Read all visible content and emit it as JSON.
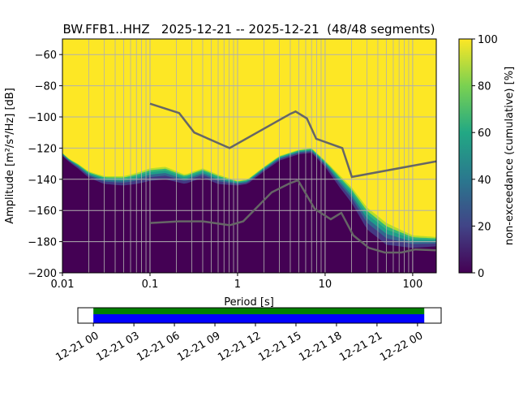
{
  "chart_data": {
    "type": "heatmap",
    "title": "BW.FFB1..HHZ   2025-12-21 -- 2025-12-21  (48/48 segments)",
    "xlabel": "Period [s]",
    "ylabel": "Amplitude [m²/s⁴/Hz] [dB]",
    "xscale": "log",
    "xlim": [
      0.01,
      186
    ],
    "ylim": [
      -200,
      -50
    ],
    "xticks": [
      {
        "v": 0.01,
        "label": "0.01"
      },
      {
        "v": 0.1,
        "label": "0.1"
      },
      {
        "v": 1,
        "label": "1"
      },
      {
        "v": 10,
        "label": "10"
      },
      {
        "v": 100,
        "label": "100"
      }
    ],
    "yticks": [
      {
        "v": -60,
        "label": "−60"
      },
      {
        "v": -80,
        "label": "−80"
      },
      {
        "v": -100,
        "label": "−100"
      },
      {
        "v": -120,
        "label": "−120"
      },
      {
        "v": -140,
        "label": "−140"
      },
      {
        "v": -160,
        "label": "−160"
      },
      {
        "v": -180,
        "label": "−180"
      },
      {
        "v": -200,
        "label": "−200"
      }
    ],
    "grid": true,
    "colorbar": {
      "label": "non-exceedance (cumulative) [%]",
      "range": [
        0,
        100
      ],
      "ticks": [
        "0",
        "20",
        "40",
        "60",
        "80",
        "100"
      ],
      "colormap": "viridis"
    },
    "distribution_edge": {
      "periods": [
        0.01,
        0.012,
        0.015,
        0.02,
        0.03,
        0.05,
        0.07,
        0.1,
        0.15,
        0.25,
        0.4,
        0.6,
        1,
        1.3,
        2,
        3,
        5,
        7,
        10,
        15,
        20,
        30,
        50,
        100,
        186
      ],
      "db": [
        -123,
        -127,
        -130,
        -135,
        -138,
        -138,
        -136,
        -133,
        -132,
        -137,
        -133,
        -137,
        -141,
        -140,
        -132,
        -125,
        -121,
        -120,
        -128,
        -138,
        -145,
        -158,
        -168,
        -176,
        -177
      ],
      "band_width_db": [
        2,
        2,
        3,
        4,
        5,
        6,
        7,
        8,
        8,
        6,
        6,
        6,
        3,
        3,
        3,
        3,
        3,
        3,
        4,
        8,
        10,
        14,
        14,
        8,
        6
      ]
    },
    "nhnm": {
      "periods": [
        0.1,
        0.215,
        0.32,
        0.81,
        4,
        4.6,
        6.2,
        7.9,
        15.7,
        20.2,
        186
      ],
      "db": [
        -91.5,
        -97.5,
        -110,
        -120,
        -98,
        -96.5,
        -101,
        -114,
        -120,
        -138.5,
        -128.5
      ]
    },
    "nlnm": {
      "periods": [
        0.1,
        0.215,
        0.4,
        0.81,
        1.16,
        2.45,
        3.9,
        4.9,
        7.6,
        11.6,
        15.3,
        21,
        31.6,
        48,
        74,
        107,
        186
      ],
      "db": [
        -168,
        -167,
        -167,
        -169.5,
        -167,
        -148.4,
        -142.7,
        -140.6,
        -159,
        -165.6,
        -161.5,
        -176,
        -184,
        -187,
        -187,
        -185,
        -185.5
      ]
    },
    "timeline": {
      "ticks": [
        "12-21 00",
        "12-21 03",
        "12-21 06",
        "12-21 09",
        "12-21 12",
        "12-21 15",
        "12-21 18",
        "12-21 21",
        "12-22 00"
      ],
      "range_hours": [
        -2.3,
        51.5
      ],
      "data_coverage_hours": [
        0,
        49
      ],
      "colors": {
        "used": "#008000",
        "available": "#0000ff"
      }
    }
  }
}
